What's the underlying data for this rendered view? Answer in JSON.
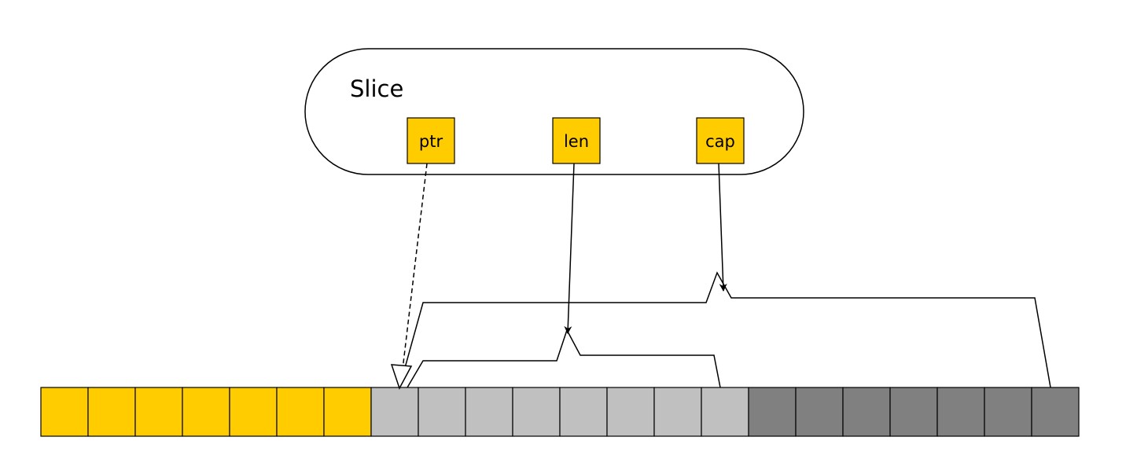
{
  "diagram": {
    "container_label": "Slice",
    "fields": [
      {
        "key": "ptr",
        "label": "ptr"
      },
      {
        "key": "len",
        "label": "len"
      },
      {
        "key": "cap",
        "label": "cap"
      }
    ],
    "array": {
      "segments": [
        {
          "name": "before-slice",
          "count": 7,
          "color": "#FFCC00"
        },
        {
          "name": "in-length",
          "count": 8,
          "color": "#C0C0C0"
        },
        {
          "name": "in-capacity",
          "count": 7,
          "color": "#808080"
        }
      ]
    },
    "colors": {
      "field_fill": "#FFCC00",
      "stroke": "#000000"
    }
  }
}
